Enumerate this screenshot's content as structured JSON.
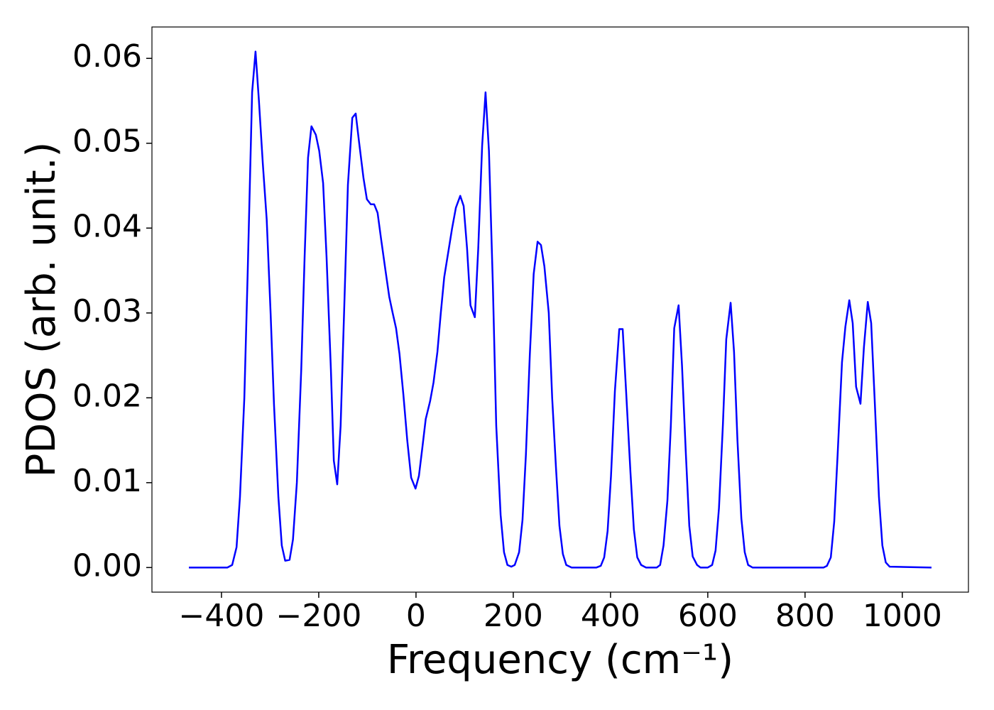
{
  "chart_data": {
    "type": "line",
    "x_label": "Frequency (cm⁻¹)",
    "y_label": "PDOS (arb. unit.)",
    "xlim": [
      -543,
      1136
    ],
    "ylim": [
      -0.0029,
      0.0637
    ],
    "xticks": [
      {
        "value": -400,
        "label": "−400"
      },
      {
        "value": -200,
        "label": "−200"
      },
      0,
      200,
      400,
      600,
      800,
      1000
    ],
    "yticks": [
      {
        "value": 0,
        "label": "0.00"
      },
      0.01,
      0.02,
      0.03,
      0.04,
      0.05,
      0.06
    ],
    "series": [
      {
        "color": "#0000ff",
        "x": [
          -467,
          -388,
          -378,
          -369,
          -362,
          -353,
          -346,
          -337,
          -330,
          -323,
          -315,
          -307,
          -299,
          -292,
          -283,
          -276,
          -269,
          -260,
          -253,
          -245,
          -236,
          -229,
          -222,
          -215,
          -206,
          -199,
          -191,
          -184,
          -175,
          -169,
          -162,
          -155,
          -147,
          -140,
          -131,
          -124,
          -117,
          -108,
          -101,
          -93,
          -86,
          -79,
          -72,
          -63,
          -55,
          -48,
          -41,
          -34,
          -26,
          -18,
          -10,
          -1,
          6,
          13,
          20,
          29,
          36,
          44,
          51,
          58,
          67,
          74,
          82,
          91,
          98,
          105,
          112,
          121,
          128,
          136,
          143,
          150,
          158,
          165,
          174,
          181,
          188,
          196,
          203,
          212,
          219,
          226,
          234,
          242,
          250,
          257,
          264,
          273,
          280,
          288,
          295,
          302,
          309,
          320,
          371,
          380,
          387,
          394,
          401,
          409,
          418,
          425,
          432,
          441,
          448,
          455,
          463,
          473,
          495,
          502,
          509,
          517,
          524,
          531,
          540,
          547,
          555,
          562,
          569,
          578,
          585,
          600,
          609,
          616,
          623,
          631,
          638,
          647,
          654,
          661,
          669,
          676,
          683,
          692,
          838,
          845,
          853,
          860,
          867,
          876,
          883,
          891,
          898,
          905,
          914,
          921,
          929,
          936,
          943,
          952,
          959,
          966,
          974,
          1060
        ],
        "values": [
          0,
          0,
          0.0003,
          0.0024,
          0.0083,
          0.02,
          0.035,
          0.056,
          0.0608,
          0.055,
          0.0476,
          0.041,
          0.03,
          0.0192,
          0.0083,
          0.0026,
          0.0008,
          0.0009,
          0.0033,
          0.01,
          0.0233,
          0.0367,
          0.0483,
          0.052,
          0.051,
          0.0491,
          0.0453,
          0.0367,
          0.0233,
          0.0126,
          0.0098,
          0.0167,
          0.0317,
          0.0451,
          0.053,
          0.0535,
          0.0501,
          0.0459,
          0.0434,
          0.0428,
          0.0428,
          0.0418,
          0.0388,
          0.0351,
          0.0319,
          0.03,
          0.0282,
          0.0252,
          0.0204,
          0.015,
          0.0106,
          0.0093,
          0.0108,
          0.0141,
          0.0175,
          0.0196,
          0.0218,
          0.0254,
          0.03,
          0.0342,
          0.0374,
          0.0399,
          0.0424,
          0.0438,
          0.0426,
          0.0376,
          0.0309,
          0.0295,
          0.0376,
          0.0497,
          0.056,
          0.0491,
          0.0334,
          0.0167,
          0.0062,
          0.0018,
          0.0003,
          0.0001,
          0.0003,
          0.0018,
          0.0056,
          0.0133,
          0.025,
          0.0346,
          0.0384,
          0.038,
          0.0355,
          0.03,
          0.02,
          0.0116,
          0.0049,
          0.0016,
          0.0003,
          0,
          0,
          0.0002,
          0.0012,
          0.0043,
          0.0108,
          0.0208,
          0.0281,
          0.0281,
          0.0208,
          0.0112,
          0.0045,
          0.0012,
          0.0003,
          0,
          0,
          0.0003,
          0.0026,
          0.0079,
          0.0167,
          0.0282,
          0.0309,
          0.0238,
          0.0133,
          0.0049,
          0.0013,
          0.0003,
          0,
          0,
          0.0003,
          0.002,
          0.007,
          0.0167,
          0.0269,
          0.0312,
          0.0254,
          0.015,
          0.0058,
          0.0018,
          0.0003,
          0,
          0,
          0.0002,
          0.0012,
          0.0054,
          0.0133,
          0.0242,
          0.0284,
          0.0315,
          0.0288,
          0.0213,
          0.0193,
          0.0259,
          0.0313,
          0.0288,
          0.02,
          0.0083,
          0.0026,
          0.0006,
          0.0001,
          0
        ]
      }
    ]
  }
}
